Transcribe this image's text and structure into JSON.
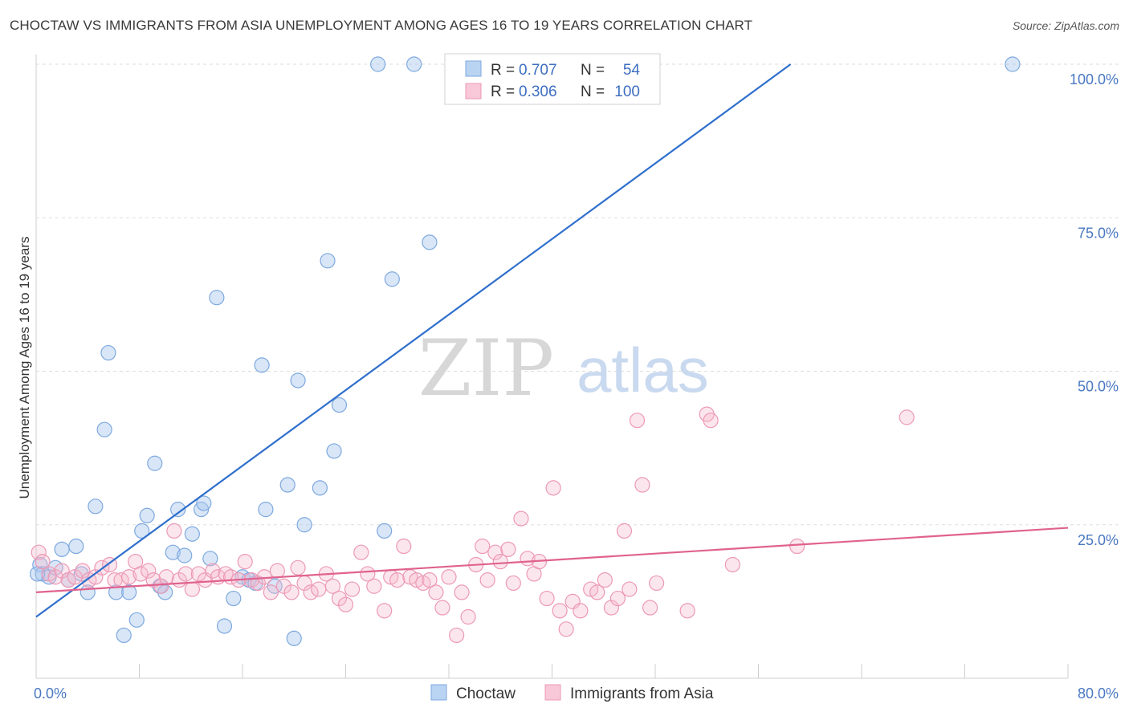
{
  "title": "CHOCTAW VS IMMIGRANTS FROM ASIA UNEMPLOYMENT AMONG AGES 16 TO 19 YEARS CORRELATION CHART",
  "source": "Source: ZipAtlas.com",
  "watermark": {
    "part1": "ZIP",
    "part2": "atlas"
  },
  "legend": {
    "rows": [
      {
        "r_label": "R = ",
        "r_value": "0.707",
        "n_label": "N = ",
        "n_value": "54"
      },
      {
        "r_label": "R = ",
        "r_value": "0.306",
        "n_label": "N = ",
        "n_value": "100"
      }
    ]
  },
  "chart_data": {
    "type": "scatter",
    "title": "CHOCTAW VS IMMIGRANTS FROM ASIA UNEMPLOYMENT AMONG AGES 16 TO 19 YEARS CORRELATION CHART",
    "xlabel": "",
    "ylabel": "Unemployment Among Ages 16 to 19 years",
    "xlim": [
      0,
      80
    ],
    "ylim": [
      0,
      100
    ],
    "x_tick_labels": [
      "0.0%",
      "80.0%"
    ],
    "y_tick_labels": [
      "100.0%",
      "75.0%",
      "50.0%",
      "25.0%"
    ],
    "y_tick_values": [
      100,
      75,
      50,
      25
    ],
    "grid": true,
    "legend_position": "top-center",
    "colors": {
      "Choctaw": "#a8c8ee",
      "Choctaw_line": "#2f6fcc",
      "Immigrants from Asia": "#f5b8cc",
      "Immigrants_line": "#e0628e"
    },
    "series": [
      {
        "name": "Choctaw",
        "trend": {
          "x": [
            0,
            58.5
          ],
          "y": [
            10,
            100
          ]
        },
        "points": [
          [
            0.3,
            18.5
          ],
          [
            0.5,
            17
          ],
          [
            1.0,
            16.5
          ],
          [
            1.5,
            18
          ],
          [
            2.0,
            21
          ],
          [
            2.5,
            16
          ],
          [
            3.1,
            21.5
          ],
          [
            3.5,
            17
          ],
          [
            4.0,
            14
          ],
          [
            4.6,
            28
          ],
          [
            5.3,
            40.5
          ],
          [
            5.6,
            53
          ],
          [
            6.2,
            14
          ],
          [
            6.8,
            7
          ],
          [
            7.2,
            14
          ],
          [
            7.8,
            9.5
          ],
          [
            8.2,
            24
          ],
          [
            8.6,
            26.5
          ],
          [
            9.2,
            35
          ],
          [
            9.6,
            15
          ],
          [
            10.0,
            14
          ],
          [
            10.6,
            20.5
          ],
          [
            11.0,
            27.5
          ],
          [
            11.5,
            20
          ],
          [
            12.1,
            23.5
          ],
          [
            12.8,
            27.5
          ],
          [
            13.0,
            28.5
          ],
          [
            13.5,
            19.5
          ],
          [
            14.0,
            62
          ],
          [
            14.6,
            8.5
          ],
          [
            15.3,
            13
          ],
          [
            16.0,
            16.5
          ],
          [
            16.5,
            16
          ],
          [
            17.0,
            15.5
          ],
          [
            17.5,
            51
          ],
          [
            17.8,
            27.5
          ],
          [
            18.5,
            15
          ],
          [
            19.5,
            31.5
          ],
          [
            20.0,
            6.5
          ],
          [
            20.3,
            48.5
          ],
          [
            20.8,
            25
          ],
          [
            22.0,
            31
          ],
          [
            22.6,
            68
          ],
          [
            23.1,
            37
          ],
          [
            23.5,
            44.5
          ],
          [
            26.5,
            100
          ],
          [
            27.0,
            24
          ],
          [
            27.6,
            65
          ],
          [
            29.3,
            100
          ],
          [
            30.5,
            71
          ],
          [
            32.6,
            100
          ],
          [
            38.3,
            100
          ],
          [
            75.7,
            100
          ],
          [
            0.1,
            17
          ]
        ]
      },
      {
        "name": "Immigrants from Asia",
        "trend": {
          "x": [
            0,
            80
          ],
          "y": [
            14,
            24.5
          ]
        },
        "points": [
          [
            0.2,
            20.5
          ],
          [
            0.5,
            19
          ],
          [
            1.0,
            17
          ],
          [
            1.5,
            16.5
          ],
          [
            2.0,
            17.5
          ],
          [
            2.5,
            16
          ],
          [
            3.0,
            16.5
          ],
          [
            3.6,
            17.5
          ],
          [
            4.1,
            16
          ],
          [
            4.6,
            16.5
          ],
          [
            5.1,
            18
          ],
          [
            5.7,
            18.5
          ],
          [
            6.1,
            16
          ],
          [
            6.6,
            16
          ],
          [
            7.2,
            16.5
          ],
          [
            7.7,
            19
          ],
          [
            8.1,
            17
          ],
          [
            8.7,
            17.5
          ],
          [
            9.1,
            16
          ],
          [
            9.7,
            15
          ],
          [
            10.1,
            16.5
          ],
          [
            10.7,
            24
          ],
          [
            11.1,
            16
          ],
          [
            11.6,
            17
          ],
          [
            12.1,
            14.5
          ],
          [
            12.6,
            17
          ],
          [
            13.1,
            16
          ],
          [
            13.7,
            17.5
          ],
          [
            14.1,
            16.5
          ],
          [
            14.7,
            17
          ],
          [
            15.1,
            16.5
          ],
          [
            15.7,
            16
          ],
          [
            16.2,
            19
          ],
          [
            16.7,
            16
          ],
          [
            17.2,
            15.5
          ],
          [
            17.7,
            16.5
          ],
          [
            18.2,
            14
          ],
          [
            18.7,
            17.5
          ],
          [
            19.2,
            15
          ],
          [
            19.8,
            14
          ],
          [
            20.3,
            18
          ],
          [
            20.8,
            15.5
          ],
          [
            21.3,
            14
          ],
          [
            21.9,
            14.5
          ],
          [
            22.5,
            17
          ],
          [
            23.0,
            15
          ],
          [
            23.5,
            13
          ],
          [
            24.0,
            12
          ],
          [
            24.5,
            14.5
          ],
          [
            25.2,
            20.5
          ],
          [
            25.7,
            17
          ],
          [
            26.2,
            15
          ],
          [
            27.0,
            11
          ],
          [
            27.5,
            16.5
          ],
          [
            28.0,
            16
          ],
          [
            28.5,
            21.5
          ],
          [
            29.0,
            16.5
          ],
          [
            29.5,
            16
          ],
          [
            30.0,
            15.5
          ],
          [
            30.5,
            16
          ],
          [
            31.0,
            14
          ],
          [
            31.5,
            11.5
          ],
          [
            32.0,
            16.5
          ],
          [
            32.6,
            7
          ],
          [
            33.0,
            14
          ],
          [
            33.5,
            10
          ],
          [
            34.1,
            18.5
          ],
          [
            34.6,
            21.5
          ],
          [
            35.0,
            16
          ],
          [
            35.6,
            20.5
          ],
          [
            36.0,
            19
          ],
          [
            36.6,
            21
          ],
          [
            37.0,
            15.5
          ],
          [
            37.6,
            26
          ],
          [
            38.1,
            19.5
          ],
          [
            38.6,
            17
          ],
          [
            39.0,
            19
          ],
          [
            39.6,
            13
          ],
          [
            40.1,
            31
          ],
          [
            40.6,
            11
          ],
          [
            41.1,
            8
          ],
          [
            41.6,
            12.5
          ],
          [
            42.2,
            11
          ],
          [
            43.0,
            14.5
          ],
          [
            43.5,
            14
          ],
          [
            44.1,
            16
          ],
          [
            44.6,
            11.5
          ],
          [
            45.1,
            13
          ],
          [
            45.6,
            24
          ],
          [
            46.0,
            14.5
          ],
          [
            46.6,
            42
          ],
          [
            47.0,
            31.5
          ],
          [
            47.6,
            11.5
          ],
          [
            48.1,
            15.5
          ],
          [
            50.5,
            11
          ],
          [
            52.0,
            43
          ],
          [
            52.3,
            42
          ],
          [
            54.0,
            18.5
          ],
          [
            59.0,
            21.5
          ],
          [
            67.5,
            42.5
          ]
        ]
      }
    ]
  },
  "bottom_legend": [
    {
      "label": "Choctaw",
      "color": "#a8c8ee"
    },
    {
      "label": "Immigrants from Asia",
      "color": "#f5b8cc"
    }
  ]
}
